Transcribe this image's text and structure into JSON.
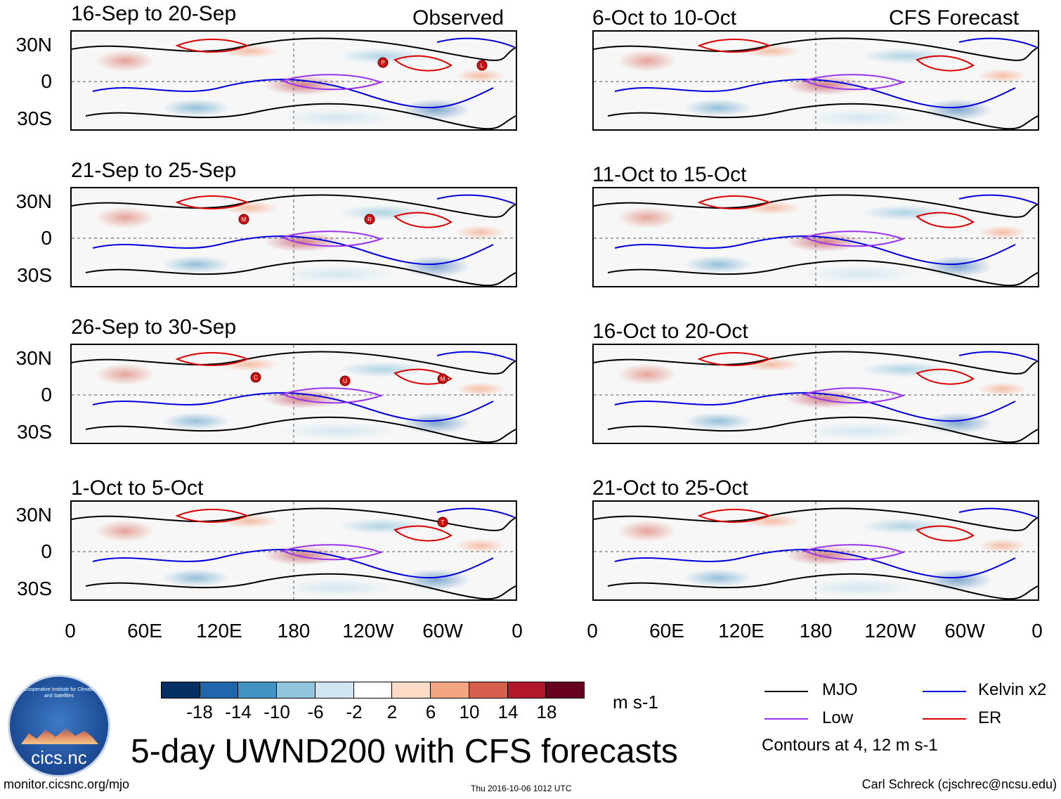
{
  "header": {
    "observed_label": "Observed",
    "forecast_label": "CFS Forecast"
  },
  "panels_left": [
    {
      "title": "16-Sep to 20-Sep"
    },
    {
      "title": "21-Sep to 25-Sep"
    },
    {
      "title": "26-Sep to 30-Sep"
    },
    {
      "title": "1-Oct to 5-Oct"
    }
  ],
  "panels_right": [
    {
      "title": "6-Oct to 10-Oct"
    },
    {
      "title": "11-Oct to 15-Oct"
    },
    {
      "title": "16-Oct to 20-Oct"
    },
    {
      "title": "21-Oct to 25-Oct"
    }
  ],
  "lat_labels": [
    "30N",
    "0",
    "30S"
  ],
  "lon_labels": [
    "0",
    "60E",
    "120E",
    "180",
    "120W",
    "60W",
    "0"
  ],
  "storm_markers": {
    "p1": [
      "P",
      "L"
    ],
    "p2": [
      "M",
      "R"
    ],
    "p3": [
      "C",
      "U",
      "M"
    ],
    "p4": [
      "T"
    ]
  },
  "colorbar": {
    "colors": [
      "#053061",
      "#2166ac",
      "#4393c3",
      "#92c5de",
      "#d1e5f0",
      "#ffffff",
      "#fddbc7",
      "#f4a582",
      "#d6604d",
      "#b2182b",
      "#67001f"
    ],
    "labels": [
      "-18",
      "-14",
      "-10",
      "-6",
      "-2",
      "2",
      "6",
      "10",
      "14",
      "18"
    ],
    "units": "m s-1"
  },
  "legend": {
    "mjo": "MJO",
    "kelvin": "Kelvin x2",
    "low": "Low",
    "er": "ER",
    "contours_note": "Contours at 4, 12 m s-1",
    "colors": {
      "mjo": "#000000",
      "kelvin": "#0000dd",
      "low": "#9933ee",
      "er": "#dd0000"
    }
  },
  "main_title": "5-day UWND200 with CFS forecasts",
  "logo": {
    "arc_text": "Cooperative Institute for Climate and Satellites",
    "name": "cics.nc"
  },
  "footer": {
    "url": "monitor.cicsnc.org/mjo",
    "timestamp": "Thu 2016-10-06 1012 UTC",
    "author": "Carl Schreck (cjschrec@ncsu.edu)"
  }
}
